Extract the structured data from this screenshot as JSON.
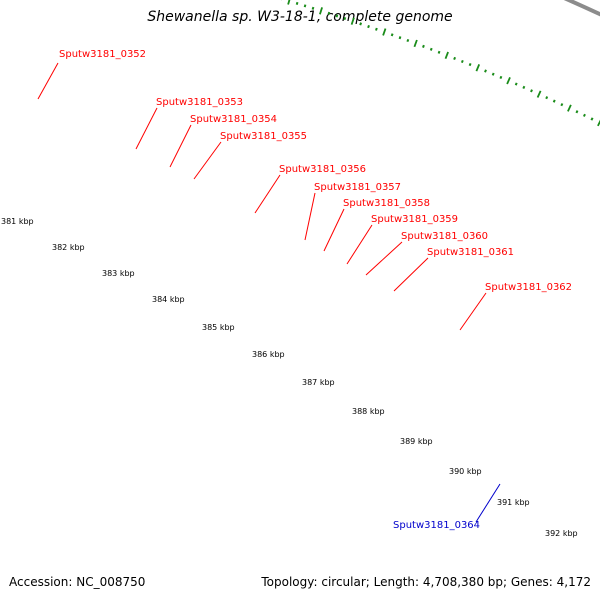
{
  "title": "Shewanella sp. W3-18-1, complete genome",
  "footer": {
    "accession": "Accession: NC_008750",
    "summary": "Topology: circular; Length: 4,708,380 bp; Genes: 4,172"
  },
  "colors": {
    "backbone": "#8c8c8c",
    "tick_green": "#1a8c1a",
    "label_red": "#ff0000",
    "label_blue": "#0000cc",
    "gene_red": "#ff0000",
    "gene_magenta": "#ff1aa8",
    "gene_purple": "#3f3f99",
    "gene_blue": "#0000ff"
  },
  "scale_labels": [
    "381 kbp",
    "382 kbp",
    "383 kbp",
    "384 kbp",
    "385 kbp",
    "386 kbp",
    "387 kbp",
    "388 kbp",
    "389 kbp",
    "390 kbp",
    "391 kbp",
    "392 kbp"
  ],
  "genes": [
    {
      "label": "Sputw3181_0352",
      "color": "purple",
      "strand": "plus"
    },
    {
      "label": "Sputw3181_0353",
      "color": "red",
      "strand": "plus"
    },
    {
      "label": "Sputw3181_0354",
      "color": "red",
      "strand": "plus"
    },
    {
      "label": "Sputw3181_0355",
      "color": "red",
      "strand": "plus"
    },
    {
      "label": "Sputw3181_0356",
      "color": "red",
      "strand": "plus"
    },
    {
      "label": "Sputw3181_0357",
      "color": "magenta",
      "strand": "plus"
    },
    {
      "label": "Sputw3181_0358",
      "color": "magenta",
      "strand": "plus"
    },
    {
      "label": "Sputw3181_0359",
      "color": "red",
      "strand": "plus"
    },
    {
      "label": "Sputw3181_0360",
      "color": "red",
      "strand": "plus"
    },
    {
      "label": "Sputw3181_0361",
      "color": "red",
      "strand": "plus"
    },
    {
      "label": "Sputw3181_0362",
      "color": "red",
      "strand": "plus"
    },
    {
      "label": "Sputw3181_0364",
      "color": "blue",
      "strand": "minus"
    }
  ]
}
